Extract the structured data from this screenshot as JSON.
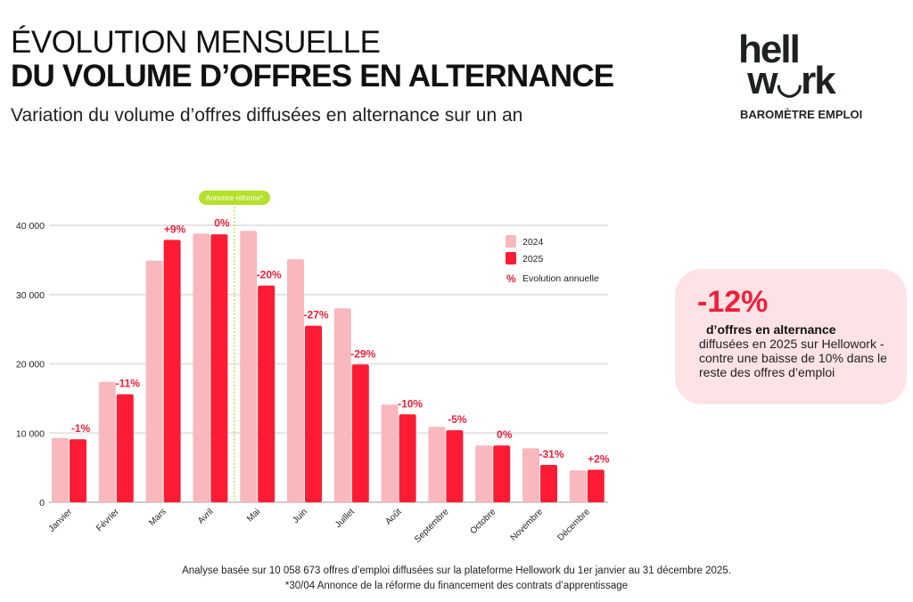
{
  "header": {
    "title_line1": "ÉVOLUTION MENSUELLE",
    "title_line2": "DU VOLUME D’OFFRES EN ALTERNANCE",
    "subtitle": "Variation du volume d’offres diffusées en alternance sur un an"
  },
  "brand": {
    "logo_text": "hellowork",
    "tagline": "BAROMÈTRE EMPLOI"
  },
  "highlight": {
    "value": "-12%",
    "bold": "d’offres en alternance",
    "text": "diffusées en 2025 sur Hellowork - contre une baisse de 10% dans le reste des offres d’emploi"
  },
  "footer": {
    "line1": "Analyse basée sur 10 058 673 offres d’emploi diffusées sur la plateforme Hellowork du 1er janvier au 31 décembre 2025.",
    "line2": "*30/04 Annonce de la réforme du financement des contrats d’apprentissage"
  },
  "chart_data": {
    "type": "bar",
    "categories": [
      "Janvier",
      "Février",
      "Mars",
      "Avril",
      "Mai",
      "Juin",
      "Juillet",
      "Août",
      "Septembre",
      "Octobre",
      "Novembre",
      "Décembre"
    ],
    "series": [
      {
        "name": "2024",
        "color": "#f9b8bd",
        "values": [
          9300,
          17400,
          34900,
          38800,
          39200,
          35100,
          28000,
          14100,
          10900,
          8200,
          7800,
          4600
        ]
      },
      {
        "name": "2025",
        "color": "#fd1c33",
        "values": [
          9100,
          15600,
          37900,
          38700,
          31300,
          25500,
          19900,
          12700,
          10400,
          8200,
          5400,
          4700
        ]
      }
    ],
    "evolution_labels": [
      "-1%",
      "-11%",
      "+9%",
      "0%",
      "-20%",
      "-27%",
      "-29%",
      "-10%",
      "-5%",
      "0%",
      "-31%",
      "+2%"
    ],
    "legend": {
      "items": [
        "2024",
        "2025"
      ],
      "evolution_symbol": "%",
      "evolution_label": "Evolution annuelle",
      "placement": "top-right"
    },
    "yticks": [
      0,
      10000,
      20000,
      30000,
      40000
    ],
    "ytick_labels": [
      "0",
      "10 000",
      "20 000",
      "30 000",
      "40 000"
    ],
    "ylim": [
      0,
      40000
    ],
    "grid": true,
    "annotation": {
      "label": "Annonce réforme*",
      "between": [
        "Avril",
        "Mai"
      ],
      "color": "#b5e02c"
    }
  }
}
